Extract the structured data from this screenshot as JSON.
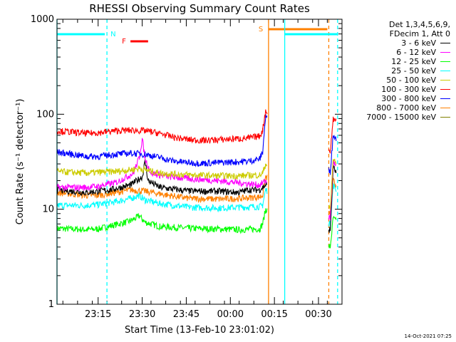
{
  "chart_data": {
    "type": "line",
    "title": "RHESSI Observing Summary Count Rates",
    "xlabel": "Start Time (13-Feb-10 23:01:02)",
    "ylabel": "Count Rate (s⁻¹ detector⁻¹)",
    "y_scale": "log",
    "ylim": [
      1,
      1000
    ],
    "xlim_minutes": [
      0,
      97
    ],
    "y_ticks": [
      "1",
      "10",
      "100",
      "1000"
    ],
    "x_ticks": [
      {
        "label": "23:15",
        "t": 14
      },
      {
        "label": "23:30",
        "t": 29
      },
      {
        "label": "23:45",
        "t": 44
      },
      {
        "label": "00:00",
        "t": 59
      },
      {
        "label": "00:15",
        "t": 74
      },
      {
        "label": "00:30",
        "t": 89
      }
    ],
    "gaps_minutes": [
      [
        71.5,
        92.5
      ]
    ],
    "series": [
      {
        "name": "3 - 6 keV",
        "color": "#000000",
        "points": [
          [
            0,
            16
          ],
          [
            10,
            15
          ],
          [
            14,
            15.5
          ],
          [
            18,
            16
          ],
          [
            25,
            18
          ],
          [
            29,
            22
          ],
          [
            30,
            32
          ],
          [
            31,
            20
          ],
          [
            35,
            17
          ],
          [
            45,
            15.5
          ],
          [
            55,
            15.5
          ],
          [
            62,
            15
          ],
          [
            65,
            16
          ],
          [
            69,
            16
          ],
          [
            71,
            18
          ],
          [
            93,
            6
          ],
          [
            94,
            28
          ],
          [
            95,
            24
          ]
        ]
      },
      {
        "name": "6 - 12 keV",
        "color": "#ff00ff",
        "points": [
          [
            0,
            17
          ],
          [
            10,
            17
          ],
          [
            14,
            17.5
          ],
          [
            20,
            19
          ],
          [
            26,
            24
          ],
          [
            28,
            35
          ],
          [
            29,
            55
          ],
          [
            30,
            34
          ],
          [
            32,
            24
          ],
          [
            38,
            22
          ],
          [
            45,
            21
          ],
          [
            55,
            20
          ],
          [
            62,
            19
          ],
          [
            69,
            18
          ],
          [
            71,
            20
          ],
          [
            93,
            8
          ],
          [
            94,
            32
          ],
          [
            95,
            28
          ]
        ]
      },
      {
        "name": "12 - 25 keV",
        "color": "#00ff00",
        "points": [
          [
            0,
            6.3
          ],
          [
            10,
            6.1
          ],
          [
            14,
            6.2
          ],
          [
            20,
            6.9
          ],
          [
            25,
            7.5
          ],
          [
            28,
            8.5
          ],
          [
            30,
            7.3
          ],
          [
            35,
            6.6
          ],
          [
            45,
            6.3
          ],
          [
            55,
            6.2
          ],
          [
            62,
            6.1
          ],
          [
            69,
            6.2
          ],
          [
            70,
            7
          ],
          [
            71,
            10
          ],
          [
            93,
            4
          ],
          [
            94,
            8
          ],
          [
            95,
            7.5
          ]
        ]
      },
      {
        "name": "25 - 50 keV",
        "color": "#00ffff",
        "points": [
          [
            0,
            11
          ],
          [
            10,
            11
          ],
          [
            14,
            11.2
          ],
          [
            20,
            12
          ],
          [
            25,
            13
          ],
          [
            28,
            14
          ],
          [
            30,
            12.5
          ],
          [
            35,
            11.5
          ],
          [
            45,
            10.5
          ],
          [
            55,
            10.3
          ],
          [
            62,
            10.5
          ],
          [
            69,
            10.7
          ],
          [
            70,
            11
          ],
          [
            71,
            16
          ],
          [
            93,
            7
          ],
          [
            94,
            18
          ],
          [
            95,
            16
          ]
        ]
      },
      {
        "name": "50 - 100 keV",
        "color": "#cccc00",
        "points": [
          [
            0,
            25
          ],
          [
            10,
            24
          ],
          [
            14,
            24.5
          ],
          [
            20,
            25
          ],
          [
            25,
            26
          ],
          [
            28,
            27
          ],
          [
            30,
            26
          ],
          [
            35,
            24
          ],
          [
            45,
            23
          ],
          [
            55,
            22.5
          ],
          [
            62,
            22.5
          ],
          [
            69,
            23
          ],
          [
            70,
            24
          ],
          [
            71,
            30
          ],
          [
            93,
            10
          ],
          [
            94,
            34
          ],
          [
            95,
            30
          ]
        ]
      },
      {
        "name": "100 - 300 keV",
        "color": "#ff0000",
        "points": [
          [
            0,
            67
          ],
          [
            5,
            65
          ],
          [
            10,
            63
          ],
          [
            14,
            64
          ],
          [
            20,
            67
          ],
          [
            25,
            68
          ],
          [
            30,
            67
          ],
          [
            35,
            63
          ],
          [
            40,
            57
          ],
          [
            45,
            54
          ],
          [
            50,
            53
          ],
          [
            55,
            54
          ],
          [
            60,
            55
          ],
          [
            65,
            56
          ],
          [
            69,
            59
          ],
          [
            70,
            68
          ],
          [
            71,
            110
          ],
          [
            93,
            40
          ],
          [
            94,
            90
          ],
          [
            95,
            85
          ]
        ]
      },
      {
        "name": "300 - 800 keV",
        "color": "#0000ff",
        "points": [
          [
            0,
            40
          ],
          [
            5,
            38
          ],
          [
            10,
            36
          ],
          [
            14,
            36
          ],
          [
            20,
            38
          ],
          [
            25,
            39
          ],
          [
            30,
            38
          ],
          [
            35,
            35
          ],
          [
            40,
            32
          ],
          [
            45,
            31
          ],
          [
            50,
            30.5
          ],
          [
            55,
            31
          ],
          [
            60,
            31.5
          ],
          [
            65,
            32
          ],
          [
            69,
            34
          ],
          [
            70,
            40
          ],
          [
            71,
            95
          ],
          [
            93,
            25
          ],
          [
            94,
            60
          ],
          [
            95,
            55
          ]
        ]
      },
      {
        "name": "800 - 7000 keV",
        "color": "#ff8000",
        "points": [
          [
            0,
            15
          ],
          [
            10,
            14
          ],
          [
            14,
            14
          ],
          [
            20,
            15
          ],
          [
            25,
            16
          ],
          [
            30,
            15.5
          ],
          [
            35,
            14.5
          ],
          [
            45,
            13
          ],
          [
            55,
            12.8
          ],
          [
            62,
            13
          ],
          [
            69,
            13.5
          ],
          [
            70,
            14
          ],
          [
            71,
            22
          ],
          [
            93,
            9
          ],
          [
            94,
            20
          ],
          [
            95,
            18
          ]
        ]
      },
      {
        "name": "7000 - 15000 keV",
        "color": "#808000",
        "points": []
      }
    ],
    "annotations": [
      {
        "label": "N",
        "color": "#00ffff",
        "t_start": 0,
        "t_end": 17,
        "solid_at": 0,
        "dashed_at": 17
      },
      {
        "label": "S",
        "color": "#ff8000",
        "t_start": 72,
        "t_end": 92.5,
        "solid_at": 72,
        "dashed_at": 92.5
      },
      {
        "label": "F",
        "color": "#ff0000",
        "t_start": 25,
        "t_end": 31
      }
    ],
    "night_bar2": {
      "color": "#00ffff",
      "t_start": 77.5,
      "t_end": 95.5,
      "solid_at": 77.5,
      "dashed_at": 95.5
    }
  },
  "legend": {
    "header_lines": [
      "Det 1,3,4,5,6,9,",
      "FDecim 1, Att 0"
    ]
  },
  "timestamp": "14-Oct-2021 07:25"
}
